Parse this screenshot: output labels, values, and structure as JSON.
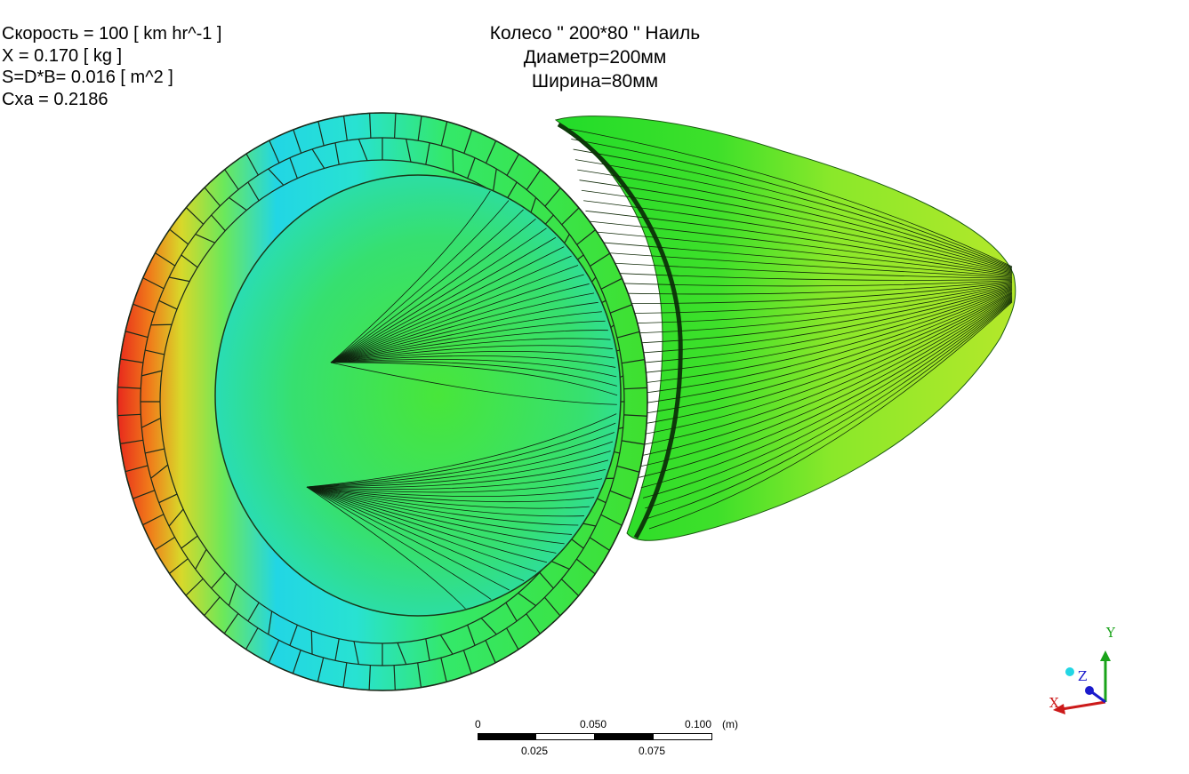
{
  "info": {
    "speed": "Скорость = 100 [ km hr^-1 ]",
    "force": "X = 0.170 [ kg ]",
    "area": "S=D*B= 0.016 [ m^2 ]",
    "cxa": "Cxa = 0.2186"
  },
  "title": {
    "line1": "Колесо \" 200*80 \" Наиль",
    "line2": "Диаметр=200мм",
    "line3": "Ширина=80мм"
  },
  "scale_bar": {
    "top_labels": [
      "0",
      "0.050",
      "0.100"
    ],
    "bottom_labels": [
      "0.025",
      "0.075"
    ],
    "unit": "(m)"
  },
  "axes": {
    "y": "Y",
    "z": "Z",
    "x": "X"
  },
  "colors": {
    "axis_y": "#1aa31a",
    "axis_z": "#1a1acc",
    "axis_x": "#cc1a1a",
    "contour_hot": "#e8241a",
    "contour_mid": "#38e838",
    "contour_cold": "#22dcee"
  }
}
